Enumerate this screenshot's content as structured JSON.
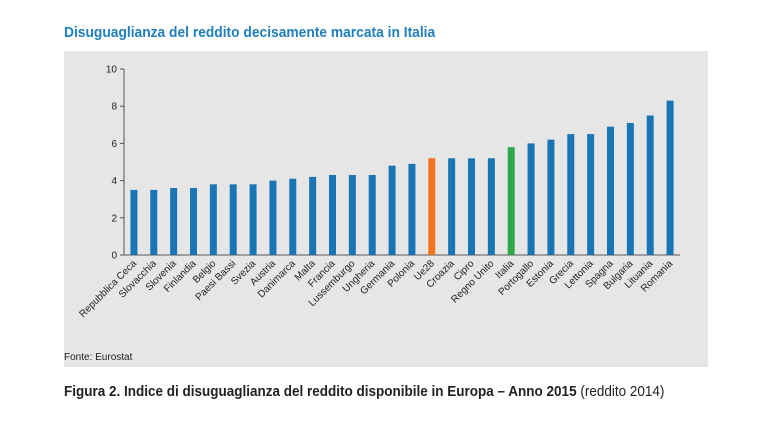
{
  "header": {
    "title": "Disuguaglianza del reddito decisamente marcata in Italia"
  },
  "footer": {
    "source": "Fonte: Eurostat",
    "caption_bold": "Figura 2. Indice di disuguaglianza del reddito disponibile in Europa – Anno 2015",
    "caption_normal": " (reddito 2014)"
  },
  "colors": {
    "default": "#1a75b5",
    "highlight_eu": "#f07320",
    "highlight_it": "#2ea84a",
    "title": "#1f7fbf"
  },
  "chart_data": {
    "type": "bar",
    "title": "",
    "xlabel": "",
    "ylabel": "",
    "ylim": [
      0,
      10
    ],
    "yticks": [
      0,
      2,
      4,
      6,
      8,
      10
    ],
    "grid": false,
    "categories": [
      "Repubblica Ceca",
      "Slovacchia",
      "Slovenia",
      "Finlandia",
      "Belgio",
      "Paesi Bassi",
      "Svezia",
      "Austria",
      "Danimarca",
      "Malta",
      "Francia",
      "Lussemburgo",
      "Ungheria",
      "Germania",
      "Polonia",
      "Ue28",
      "Croazia",
      "Cipro",
      "Regno Unito",
      "Italia",
      "Portogallo",
      "Estonia",
      "Grecia",
      "Lettonia",
      "Spagna",
      "Bulgaria",
      "Lituania",
      "Romania"
    ],
    "values": [
      3.5,
      3.5,
      3.6,
      3.6,
      3.8,
      3.8,
      3.8,
      4.0,
      4.1,
      4.2,
      4.3,
      4.3,
      4.3,
      4.8,
      4.9,
      5.2,
      5.2,
      5.2,
      5.2,
      5.8,
      6.0,
      6.2,
      6.5,
      6.5,
      6.9,
      7.1,
      7.5,
      8.3
    ],
    "highlights": {
      "Ue28": "highlight_eu",
      "Italia": "highlight_it"
    }
  }
}
